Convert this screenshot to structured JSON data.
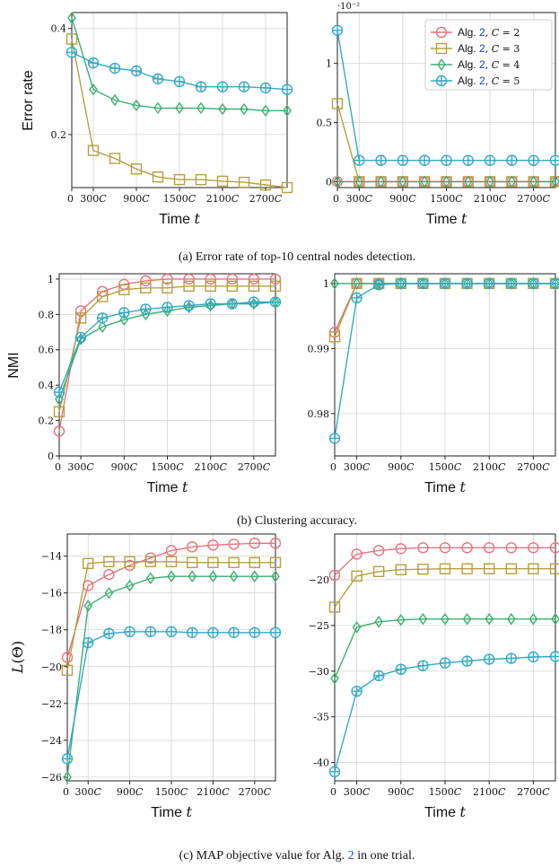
{
  "colors": {
    "C2": "#e8727f",
    "C3": "#b2a13f",
    "C4": "#3daf72",
    "C5": "#35a9c4",
    "link": "#1a3fd6",
    "grid": "#d4d4d4"
  },
  "legend": [
    {
      "alg": "Alg. ",
      "ref": "2",
      "cond": ", C = 2",
      "series": "C2",
      "marker": "circle"
    },
    {
      "alg": "Alg. ",
      "ref": "2",
      "cond": ", C = 3",
      "series": "C3",
      "marker": "square"
    },
    {
      "alg": "Alg. ",
      "ref": "2",
      "cond": ", C = 4",
      "series": "C4",
      "marker": "diamond"
    },
    {
      "alg": "Alg. ",
      "ref": "2",
      "cond": ", C = 5",
      "series": "C5",
      "marker": "oplus"
    }
  ],
  "captions": {
    "a": "(a) Error rate of top-10 central nodes detection.",
    "b": "(b) Clustering accuracy.",
    "c_prefix": "(c) MAP objective value for Alg. ",
    "c_ref": "2",
    "c_suffix": " in one trial."
  },
  "chart_data": [
    {
      "id": "a-left",
      "type": "line",
      "xlabel": "Time t",
      "ylabel": "Error rate",
      "xlim": [
        0,
        3000
      ],
      "ylim": [
        0.1,
        0.43
      ],
      "yticks": [
        0.2,
        0.4
      ],
      "yticklabels": [
        "0.2",
        "0.4"
      ],
      "xticks": [
        0,
        300,
        900,
        1500,
        2100,
        2700
      ],
      "xticklabels": [
        "0",
        "300C",
        "900C",
        "1500C",
        "2100C",
        "2700C"
      ],
      "x": [
        0,
        300,
        600,
        900,
        1200,
        1500,
        1800,
        2100,
        2400,
        2700,
        3000
      ],
      "grid": true,
      "series": [
        {
          "name": "C = 3",
          "key": "C3",
          "marker": "square",
          "values": [
            0.38,
            0.17,
            0.155,
            0.135,
            0.12,
            0.115,
            0.115,
            0.112,
            0.11,
            0.105,
            0.1
          ]
        },
        {
          "name": "C = 4",
          "key": "C4",
          "marker": "diamond",
          "values": [
            0.42,
            0.285,
            0.265,
            0.255,
            0.25,
            0.25,
            0.25,
            0.248,
            0.248,
            0.245,
            0.245
          ]
        },
        {
          "name": "C = 5",
          "key": "C5",
          "marker": "oplus",
          "values": [
            0.355,
            0.335,
            0.325,
            0.32,
            0.305,
            0.3,
            0.29,
            0.29,
            0.29,
            0.288,
            0.285
          ]
        }
      ]
    },
    {
      "id": "a-right",
      "type": "line",
      "xlabel": "Time t",
      "ylabel": "",
      "xlim": [
        0,
        3000
      ],
      "ylim": [
        -0.0005,
        0.0143
      ],
      "yticks": [
        0,
        0.005,
        0.01
      ],
      "yticklabels": [
        "0",
        "0.5",
        "1"
      ],
      "sci_label": "·10⁻²",
      "xticks": [
        0,
        300,
        900,
        1500,
        2100,
        2700
      ],
      "xticklabels": [
        "0",
        "300C",
        "900C",
        "1500C",
        "2100C",
        "2700C"
      ],
      "x": [
        0,
        300,
        600,
        900,
        1200,
        1500,
        1800,
        2100,
        2400,
        2700,
        3000
      ],
      "grid": true,
      "series": [
        {
          "name": "C = 2",
          "key": "C2",
          "marker": "circle",
          "values": [
            0,
            0,
            0,
            0,
            0,
            0,
            0,
            0,
            0,
            0,
            0
          ]
        },
        {
          "name": "C = 3",
          "key": "C3",
          "marker": "square",
          "values": [
            0.0066,
            0,
            0,
            0,
            0,
            0,
            0,
            0,
            0,
            0,
            0
          ]
        },
        {
          "name": "C = 4",
          "key": "C4",
          "marker": "diamond",
          "values": [
            0,
            0,
            0,
            0,
            0,
            0,
            0,
            0,
            0,
            0,
            0
          ]
        },
        {
          "name": "C = 5",
          "key": "C5",
          "marker": "oplus",
          "values": [
            0.0128,
            0.0018,
            0.0018,
            0.0018,
            0.0018,
            0.0018,
            0.0018,
            0.0018,
            0.0018,
            0.0018,
            0.0018
          ]
        }
      ]
    },
    {
      "id": "b-left",
      "type": "line",
      "xlabel": "Time t",
      "ylabel": "NMI",
      "xlim": [
        0,
        3000
      ],
      "ylim": [
        0,
        1.03
      ],
      "yticks": [
        0,
        0.2,
        0.4,
        0.6,
        0.8,
        1
      ],
      "yticklabels": [
        "0",
        "0.2",
        "0.4",
        "0.6",
        "0.8",
        "1"
      ],
      "xticks": [
        0,
        300,
        900,
        1500,
        2100,
        2700
      ],
      "xticklabels": [
        "0",
        "300C",
        "900C",
        "1500C",
        "2100C",
        "2700C"
      ],
      "x": [
        0,
        300,
        600,
        900,
        1200,
        1500,
        1800,
        2100,
        2400,
        2700,
        3000
      ],
      "grid": true,
      "series": [
        {
          "name": "C = 2",
          "key": "C2",
          "marker": "circle",
          "values": [
            0.14,
            0.82,
            0.93,
            0.97,
            0.99,
            1,
            1,
            1,
            1,
            1,
            1
          ]
        },
        {
          "name": "C = 3",
          "key": "C3",
          "marker": "square",
          "values": [
            0.25,
            0.78,
            0.9,
            0.94,
            0.95,
            0.95,
            0.96,
            0.96,
            0.96,
            0.96,
            0.96
          ]
        },
        {
          "name": "C = 4",
          "key": "C4",
          "marker": "diamond",
          "values": [
            0.32,
            0.66,
            0.73,
            0.77,
            0.8,
            0.82,
            0.84,
            0.85,
            0.86,
            0.86,
            0.87
          ]
        },
        {
          "name": "C = 5",
          "key": "C5",
          "marker": "oplus",
          "values": [
            0.36,
            0.67,
            0.78,
            0.81,
            0.83,
            0.84,
            0.85,
            0.86,
            0.86,
            0.87,
            0.87
          ]
        }
      ]
    },
    {
      "id": "b-right",
      "type": "line",
      "xlabel": "Time t",
      "ylabel": "",
      "xlim": [
        0,
        3000
      ],
      "ylim": [
        0.9735,
        1.0015
      ],
      "yticks": [
        0.98,
        0.99,
        1
      ],
      "yticklabels": [
        "0.98",
        "0.99",
        "1"
      ],
      "xticks": [
        0,
        300,
        900,
        1500,
        2100,
        2700
      ],
      "xticklabels": [
        "0",
        "300C",
        "900C",
        "1500C",
        "2100C",
        "2700C"
      ],
      "x": [
        0,
        300,
        600,
        900,
        1200,
        1500,
        1800,
        2100,
        2400,
        2700,
        3000
      ],
      "grid": true,
      "series": [
        {
          "name": "C = 2",
          "key": "C2",
          "marker": "circle",
          "values": [
            0.9925,
            1,
            1,
            1,
            1,
            1,
            1,
            1,
            1,
            1,
            1
          ]
        },
        {
          "name": "C = 3",
          "key": "C3",
          "marker": "square",
          "values": [
            0.9918,
            1,
            1,
            1,
            1,
            1,
            1,
            1,
            1,
            1,
            1
          ]
        },
        {
          "name": "C = 4",
          "key": "C4",
          "marker": "diamond",
          "values": [
            1,
            1,
            1,
            1,
            1,
            1,
            1,
            1,
            1,
            1,
            1
          ]
        },
        {
          "name": "C = 5",
          "key": "C5",
          "marker": "oplus",
          "values": [
            0.9762,
            0.9978,
            0.9998,
            1,
            1,
            1,
            1,
            1,
            1,
            1,
            1
          ]
        }
      ]
    },
    {
      "id": "c-left",
      "type": "line",
      "xlabel": "Time t",
      "ylabel": "L(Θ)",
      "xlim": [
        0,
        3000
      ],
      "ylim": [
        -26.2,
        -12.8
      ],
      "yticks": [
        -26,
        -24,
        -22,
        -20,
        -18,
        -16,
        -14
      ],
      "yticklabels": [
        "−26",
        "−24",
        "−22",
        "−20",
        "−18",
        "−16",
        "−14"
      ],
      "xticks": [
        0,
        300,
        900,
        1500,
        2100,
        2700
      ],
      "xticklabels": [
        "0",
        "300C",
        "900C",
        "1500C",
        "2100C",
        "2700C"
      ],
      "x": [
        0,
        300,
        600,
        900,
        1200,
        1500,
        1800,
        2100,
        2400,
        2700,
        3000
      ],
      "grid": true,
      "series": [
        {
          "name": "C = 2",
          "key": "C2",
          "marker": "circle",
          "values": [
            -19.5,
            -15.6,
            -15.0,
            -14.5,
            -14.1,
            -13.7,
            -13.5,
            -13.4,
            -13.35,
            -13.3,
            -13.3
          ]
        },
        {
          "name": "C = 3",
          "key": "C3",
          "marker": "square",
          "values": [
            -20.2,
            -14.4,
            -14.3,
            -14.3,
            -14.3,
            -14.3,
            -14.35,
            -14.35,
            -14.35,
            -14.35,
            -14.35
          ]
        },
        {
          "name": "C = 4",
          "key": "C4",
          "marker": "diamond",
          "values": [
            -26.0,
            -16.7,
            -16.0,
            -15.6,
            -15.2,
            -15.1,
            -15.1,
            -15.1,
            -15.1,
            -15.1,
            -15.1
          ]
        },
        {
          "name": "C = 5",
          "key": "C5",
          "marker": "oplus",
          "values": [
            -25.0,
            -18.7,
            -18.2,
            -18.1,
            -18.1,
            -18.1,
            -18.15,
            -18.15,
            -18.15,
            -18.15,
            -18.15
          ]
        }
      ]
    },
    {
      "id": "c-right",
      "type": "line",
      "xlabel": "Time t",
      "ylabel": "",
      "xlim": [
        0,
        3000
      ],
      "ylim": [
        -42,
        -15
      ],
      "yticks": [
        -40,
        -35,
        -30,
        -25,
        -20
      ],
      "yticklabels": [
        "-40",
        "-35",
        "−30",
        "−25",
        "−20"
      ],
      "xticks": [
        0,
        300,
        900,
        1500,
        2100,
        2700
      ],
      "xticklabels": [
        "0",
        "300C",
        "900C",
        "1500C",
        "2100C",
        "2700C"
      ],
      "x": [
        0,
        300,
        600,
        900,
        1200,
        1500,
        1800,
        2100,
        2400,
        2700,
        3000
      ],
      "grid": true,
      "series": [
        {
          "name": "C = 2",
          "key": "C2",
          "marker": "circle",
          "values": [
            -19.5,
            -17.2,
            -16.8,
            -16.6,
            -16.5,
            -16.5,
            -16.5,
            -16.5,
            -16.5,
            -16.5,
            -16.5
          ]
        },
        {
          "name": "C = 3",
          "key": "C3",
          "marker": "square",
          "values": [
            -23.0,
            -19.6,
            -19.1,
            -18.9,
            -18.85,
            -18.8,
            -18.8,
            -18.8,
            -18.8,
            -18.8,
            -18.8
          ]
        },
        {
          "name": "C = 4",
          "key": "C4",
          "marker": "diamond",
          "values": [
            -30.8,
            -25.2,
            -24.6,
            -24.4,
            -24.3,
            -24.3,
            -24.3,
            -24.3,
            -24.3,
            -24.3,
            -24.3
          ]
        },
        {
          "name": "C = 5",
          "key": "C5",
          "marker": "oplus",
          "values": [
            -41.0,
            -32.2,
            -30.5,
            -29.8,
            -29.4,
            -29.1,
            -28.9,
            -28.7,
            -28.6,
            -28.45,
            -28.4
          ]
        }
      ]
    }
  ]
}
